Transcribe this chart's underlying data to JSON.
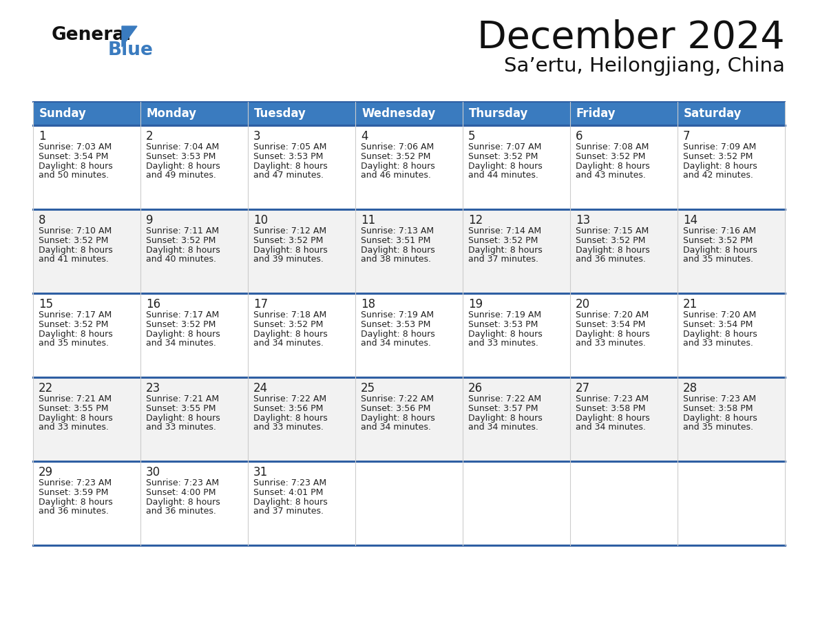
{
  "title": "December 2024",
  "subtitle": "Sa’ertu, Heilongjiang, China",
  "days_of_week": [
    "Sunday",
    "Monday",
    "Tuesday",
    "Wednesday",
    "Thursday",
    "Friday",
    "Saturday"
  ],
  "header_bg": "#3a7bbf",
  "header_text": "#ffffff",
  "row_bg_light": "#f2f2f2",
  "row_bg_white": "#ffffff",
  "cell_text": "#222222",
  "border_color": "#2e5fa3",
  "calendar_data": [
    [
      {
        "day": 1,
        "sunrise": "7:03 AM",
        "sunset": "3:54 PM",
        "daylight": "8 hours",
        "daylight2": "and 50 minutes."
      },
      {
        "day": 2,
        "sunrise": "7:04 AM",
        "sunset": "3:53 PM",
        "daylight": "8 hours",
        "daylight2": "and 49 minutes."
      },
      {
        "day": 3,
        "sunrise": "7:05 AM",
        "sunset": "3:53 PM",
        "daylight": "8 hours",
        "daylight2": "and 47 minutes."
      },
      {
        "day": 4,
        "sunrise": "7:06 AM",
        "sunset": "3:52 PM",
        "daylight": "8 hours",
        "daylight2": "and 46 minutes."
      },
      {
        "day": 5,
        "sunrise": "7:07 AM",
        "sunset": "3:52 PM",
        "daylight": "8 hours",
        "daylight2": "and 44 minutes."
      },
      {
        "day": 6,
        "sunrise": "7:08 AM",
        "sunset": "3:52 PM",
        "daylight": "8 hours",
        "daylight2": "and 43 minutes."
      },
      {
        "day": 7,
        "sunrise": "7:09 AM",
        "sunset": "3:52 PM",
        "daylight": "8 hours",
        "daylight2": "and 42 minutes."
      }
    ],
    [
      {
        "day": 8,
        "sunrise": "7:10 AM",
        "sunset": "3:52 PM",
        "daylight": "8 hours",
        "daylight2": "and 41 minutes."
      },
      {
        "day": 9,
        "sunrise": "7:11 AM",
        "sunset": "3:52 PM",
        "daylight": "8 hours",
        "daylight2": "and 40 minutes."
      },
      {
        "day": 10,
        "sunrise": "7:12 AM",
        "sunset": "3:52 PM",
        "daylight": "8 hours",
        "daylight2": "and 39 minutes."
      },
      {
        "day": 11,
        "sunrise": "7:13 AM",
        "sunset": "3:51 PM",
        "daylight": "8 hours",
        "daylight2": "and 38 minutes."
      },
      {
        "day": 12,
        "sunrise": "7:14 AM",
        "sunset": "3:52 PM",
        "daylight": "8 hours",
        "daylight2": "and 37 minutes."
      },
      {
        "day": 13,
        "sunrise": "7:15 AM",
        "sunset": "3:52 PM",
        "daylight": "8 hours",
        "daylight2": "and 36 minutes."
      },
      {
        "day": 14,
        "sunrise": "7:16 AM",
        "sunset": "3:52 PM",
        "daylight": "8 hours",
        "daylight2": "and 35 minutes."
      }
    ],
    [
      {
        "day": 15,
        "sunrise": "7:17 AM",
        "sunset": "3:52 PM",
        "daylight": "8 hours",
        "daylight2": "and 35 minutes."
      },
      {
        "day": 16,
        "sunrise": "7:17 AM",
        "sunset": "3:52 PM",
        "daylight": "8 hours",
        "daylight2": "and 34 minutes."
      },
      {
        "day": 17,
        "sunrise": "7:18 AM",
        "sunset": "3:52 PM",
        "daylight": "8 hours",
        "daylight2": "and 34 minutes."
      },
      {
        "day": 18,
        "sunrise": "7:19 AM",
        "sunset": "3:53 PM",
        "daylight": "8 hours",
        "daylight2": "and 34 minutes."
      },
      {
        "day": 19,
        "sunrise": "7:19 AM",
        "sunset": "3:53 PM",
        "daylight": "8 hours",
        "daylight2": "and 33 minutes."
      },
      {
        "day": 20,
        "sunrise": "7:20 AM",
        "sunset": "3:54 PM",
        "daylight": "8 hours",
        "daylight2": "and 33 minutes."
      },
      {
        "day": 21,
        "sunrise": "7:20 AM",
        "sunset": "3:54 PM",
        "daylight": "8 hours",
        "daylight2": "and 33 minutes."
      }
    ],
    [
      {
        "day": 22,
        "sunrise": "7:21 AM",
        "sunset": "3:55 PM",
        "daylight": "8 hours",
        "daylight2": "and 33 minutes."
      },
      {
        "day": 23,
        "sunrise": "7:21 AM",
        "sunset": "3:55 PM",
        "daylight": "8 hours",
        "daylight2": "and 33 minutes."
      },
      {
        "day": 24,
        "sunrise": "7:22 AM",
        "sunset": "3:56 PM",
        "daylight": "8 hours",
        "daylight2": "and 33 minutes."
      },
      {
        "day": 25,
        "sunrise": "7:22 AM",
        "sunset": "3:56 PM",
        "daylight": "8 hours",
        "daylight2": "and 34 minutes."
      },
      {
        "day": 26,
        "sunrise": "7:22 AM",
        "sunset": "3:57 PM",
        "daylight": "8 hours",
        "daylight2": "and 34 minutes."
      },
      {
        "day": 27,
        "sunrise": "7:23 AM",
        "sunset": "3:58 PM",
        "daylight": "8 hours",
        "daylight2": "and 34 minutes."
      },
      {
        "day": 28,
        "sunrise": "7:23 AM",
        "sunset": "3:58 PM",
        "daylight": "8 hours",
        "daylight2": "and 35 minutes."
      }
    ],
    [
      {
        "day": 29,
        "sunrise": "7:23 AM",
        "sunset": "3:59 PM",
        "daylight": "8 hours",
        "daylight2": "and 36 minutes."
      },
      {
        "day": 30,
        "sunrise": "7:23 AM",
        "sunset": "4:00 PM",
        "daylight": "8 hours",
        "daylight2": "and 36 minutes."
      },
      {
        "day": 31,
        "sunrise": "7:23 AM",
        "sunset": "4:01 PM",
        "daylight": "8 hours",
        "daylight2": "and 37 minutes."
      },
      null,
      null,
      null,
      null
    ]
  ],
  "fig_width": 11.88,
  "fig_height": 9.18,
  "dpi": 100
}
